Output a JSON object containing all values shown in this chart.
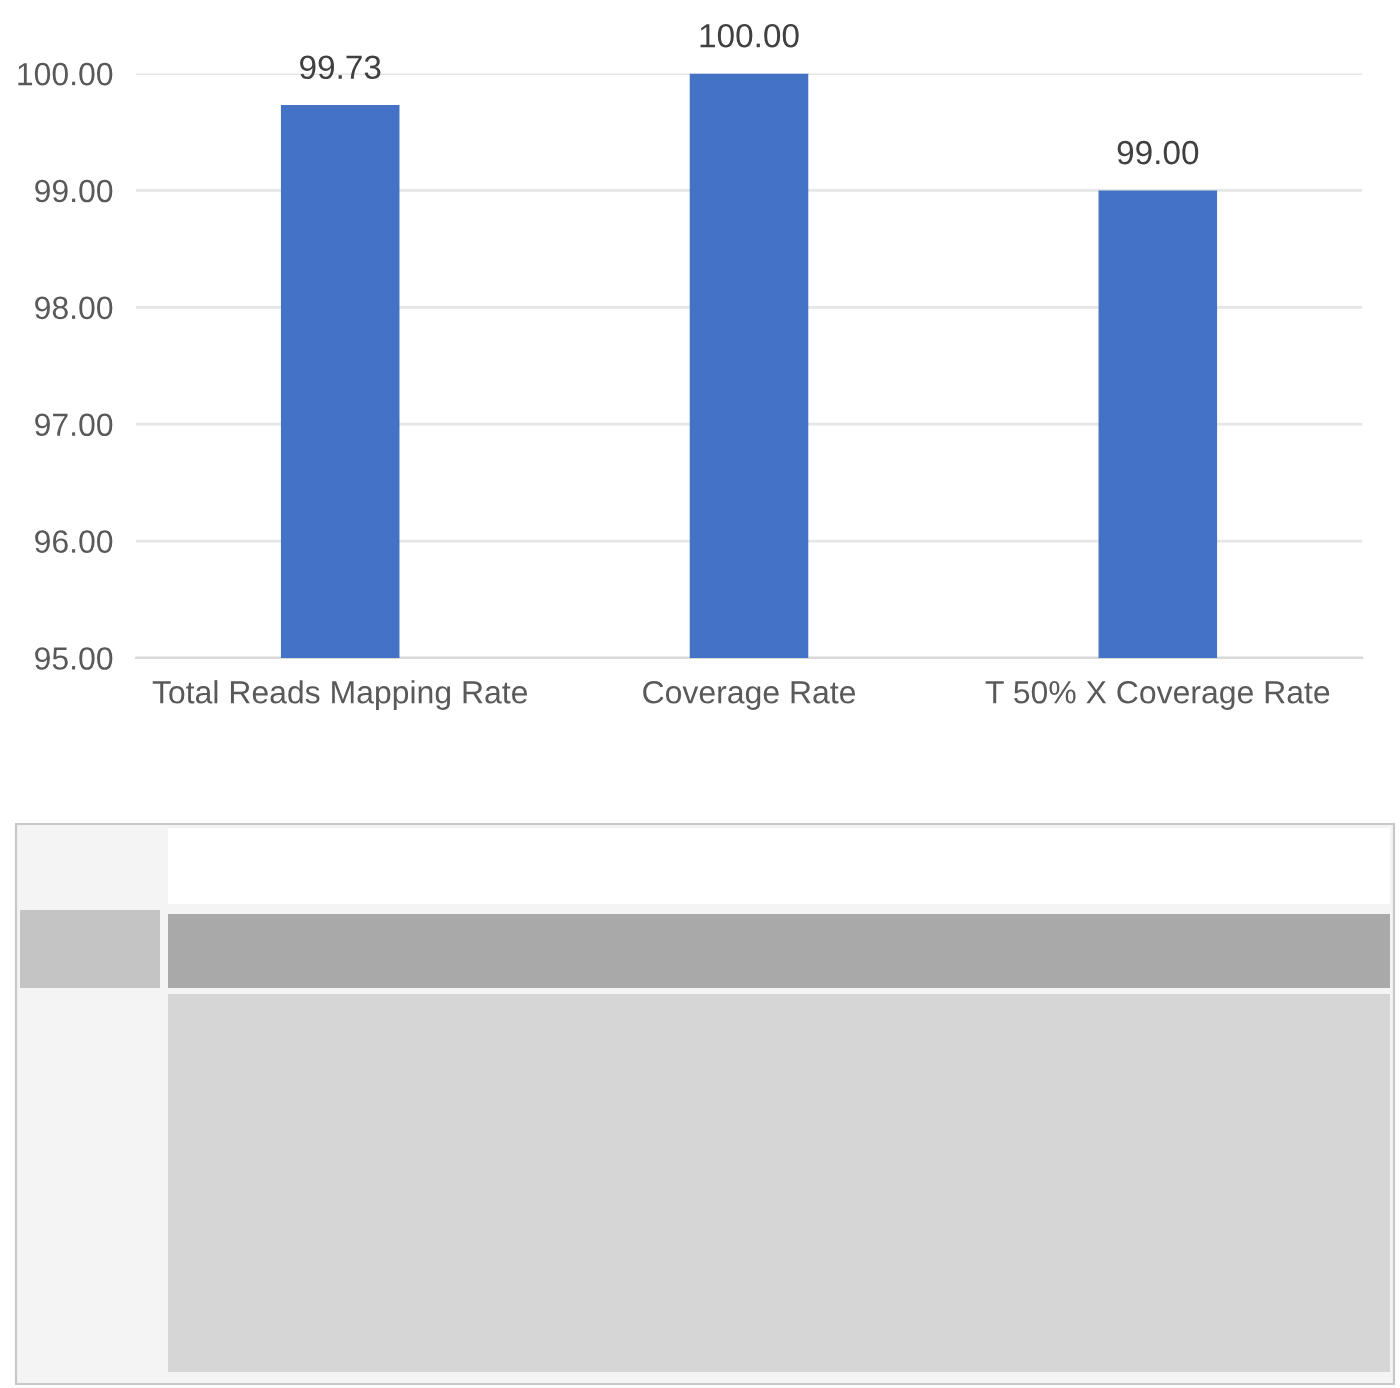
{
  "chart_data": {
    "type": "bar",
    "categories": [
      "Total Reads Mapping Rate",
      "Coverage Rate",
      "T 50% X Coverage Rate"
    ],
    "values": [
      99.73,
      100.0,
      99.0
    ],
    "color": "#4472c4",
    "value_labels": [
      "99.73",
      "100.00",
      "99.00"
    ],
    "ylim": [
      95,
      100
    ],
    "yticks": [
      {
        "value": 95,
        "label": "95.00"
      },
      {
        "value": 96,
        "label": "96.00"
      },
      {
        "value": 97,
        "label": "97.00"
      },
      {
        "value": 98,
        "label": "98.00"
      },
      {
        "value": 99,
        "label": "99.00"
      },
      {
        "value": 100,
        "label": "100.00"
      }
    ],
    "grid": "y"
  }
}
